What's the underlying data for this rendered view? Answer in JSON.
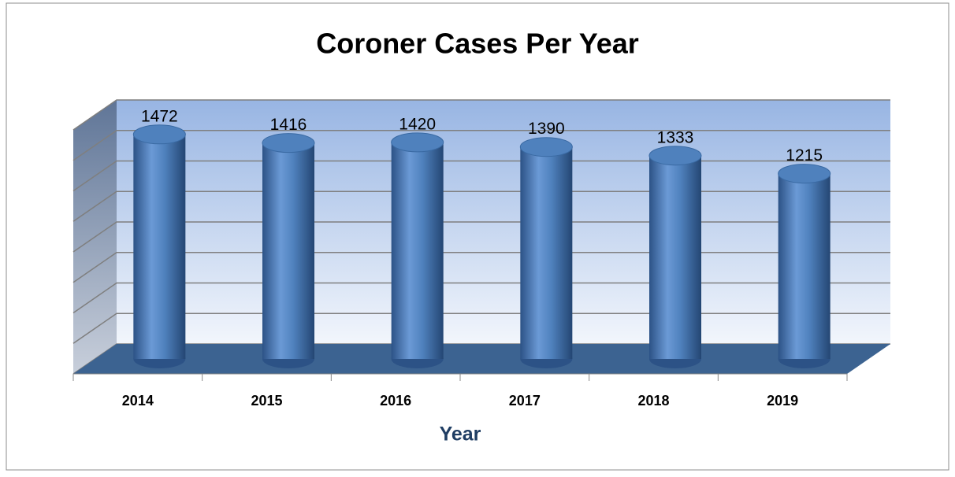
{
  "chart_data": {
    "type": "bar",
    "title": "Coroner Cases Per Year",
    "x_label": "Year",
    "categories": [
      "2014",
      "2015",
      "2016",
      "2017",
      "2018",
      "2019"
    ],
    "values": [
      1472,
      1416,
      1420,
      1390,
      1333,
      1215
    ],
    "color": "#4f81bd",
    "ylim": [
      0,
      1600
    ],
    "yticks": [
      0,
      200,
      400,
      600,
      800,
      1000,
      1200,
      1400,
      1600
    ],
    "grid": true
  }
}
